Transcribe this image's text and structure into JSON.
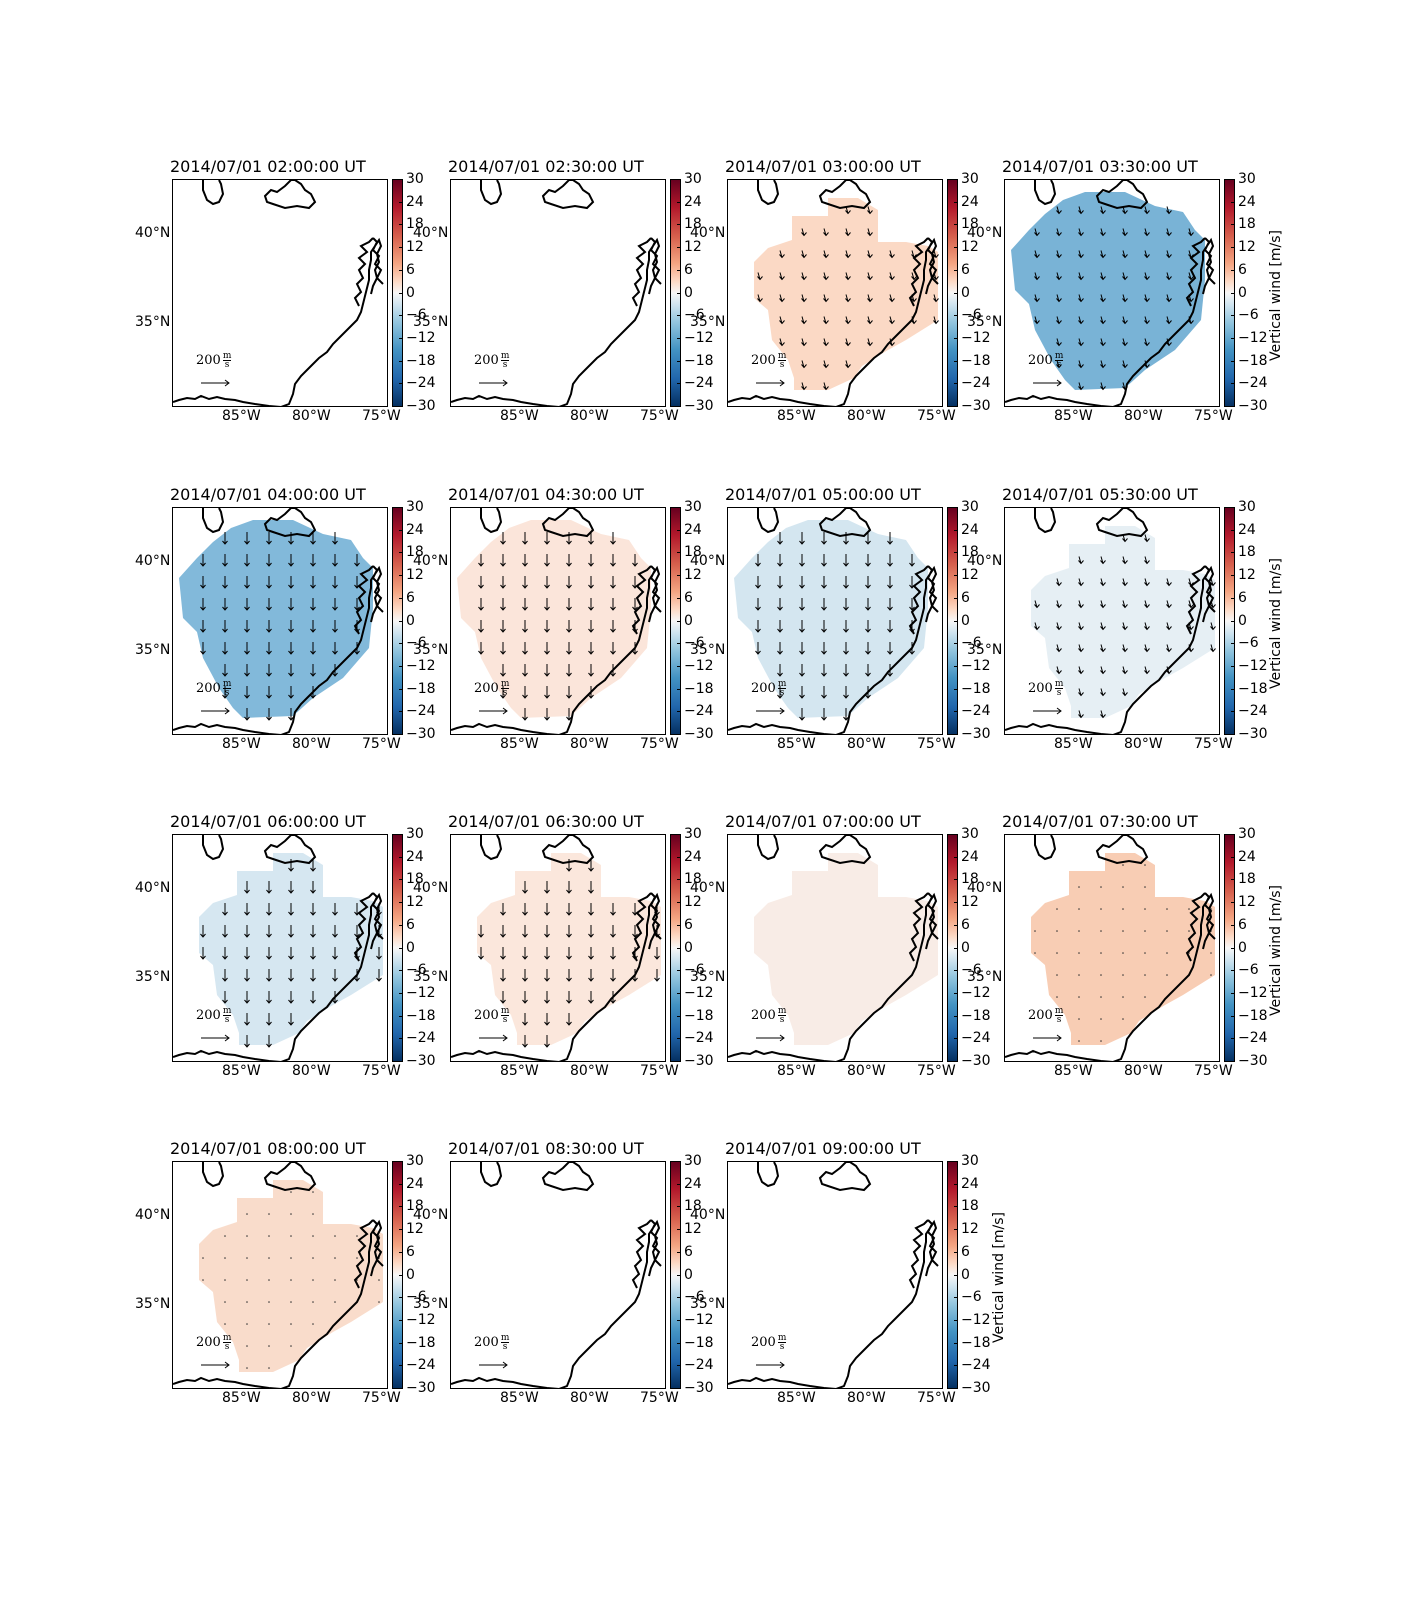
{
  "map_data": {
    "variable": "Vertical wind [m/s]",
    "colorbar": {
      "label": "Vertical wind [m/s]",
      "ticks": [
        "30",
        "24",
        "18",
        "12",
        "6",
        "0",
        "−6",
        "−12",
        "−18",
        "−24",
        "−30"
      ],
      "range": [
        -30,
        30
      ],
      "colormap": "RdBu_r"
    },
    "lat_ticks": [
      "40°N",
      "35°N"
    ],
    "lon_ticks": [
      "85°W",
      "80°W",
      "75°W"
    ],
    "reference_arrow": {
      "value": "200",
      "unit_num": "m",
      "unit_den": "s"
    },
    "panels": [
      {
        "title": "2014/07/01 02:00:00 UT",
        "fill": "",
        "value": null,
        "extent": "none",
        "arrows": false
      },
      {
        "title": "2014/07/01 02:30:00 UT",
        "fill": "",
        "value": null,
        "extent": "none",
        "arrows": false
      },
      {
        "title": "2014/07/01 03:00:00 UT",
        "fill": "#fbd9c5",
        "value": 6,
        "extent": "medium",
        "arrows": "short"
      },
      {
        "title": "2014/07/01 03:30:00 UT",
        "fill": "#79b3d6",
        "value": -14,
        "extent": "large",
        "arrows": "short"
      },
      {
        "title": "2014/07/01 04:00:00 UT",
        "fill": "#82b9da",
        "value": -13,
        "extent": "large",
        "arrows": "long"
      },
      {
        "title": "2014/07/01 04:30:00 UT",
        "fill": "#fbe5da",
        "value": 4,
        "extent": "large",
        "arrows": "long"
      },
      {
        "title": "2014/07/01 05:00:00 UT",
        "fill": "#d4e6f0",
        "value": -4,
        "extent": "large",
        "arrows": "long"
      },
      {
        "title": "2014/07/01 05:30:00 UT",
        "fill": "#e6eff4",
        "value": -2,
        "extent": "medium",
        "arrows": "short"
      },
      {
        "title": "2014/07/01 06:00:00 UT",
        "fill": "#d6e7f1",
        "value": -4,
        "extent": "medium",
        "arrows": "long"
      },
      {
        "title": "2014/07/01 06:30:00 UT",
        "fill": "#fbe7dc",
        "value": 3,
        "extent": "medium",
        "arrows": "long"
      },
      {
        "title": "2014/07/01 07:00:00 UT",
        "fill": "#f8ece6",
        "value": 2,
        "extent": "medium",
        "arrows": "none"
      },
      {
        "title": "2014/07/01 07:30:00 UT",
        "fill": "#f8cdb4",
        "value": 8,
        "extent": "medium",
        "arrows": "dots"
      },
      {
        "title": "2014/07/01 08:00:00 UT",
        "fill": "#f9dccb",
        "value": 6,
        "extent": "medium",
        "arrows": "dots"
      },
      {
        "title": "2014/07/01 08:30:00 UT",
        "fill": "",
        "value": null,
        "extent": "none",
        "arrows": false
      },
      {
        "title": "2014/07/01 09:00:00 UT",
        "fill": "",
        "value": null,
        "extent": "none",
        "arrows": false
      }
    ]
  }
}
